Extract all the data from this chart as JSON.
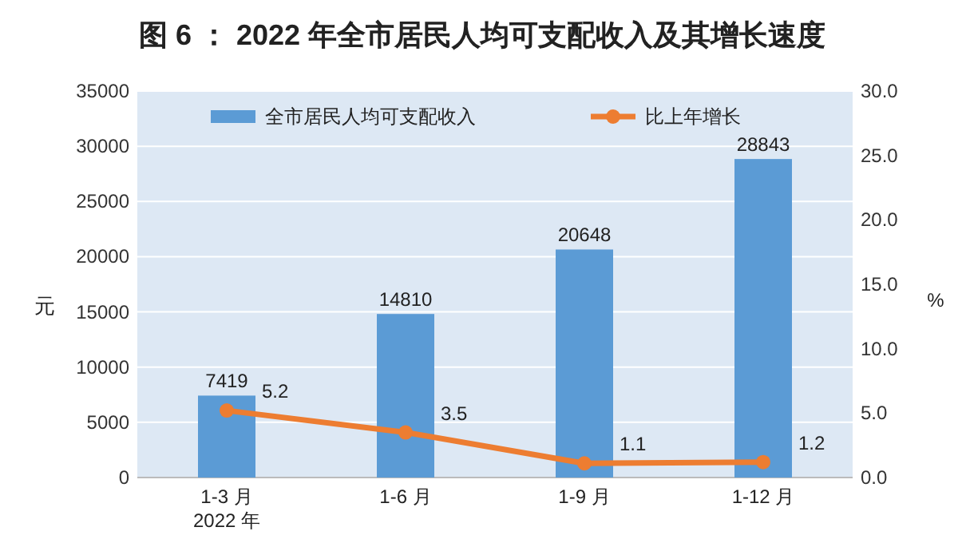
{
  "chart_data": {
    "type": "bar",
    "title": "图 6 ： 2022 年全市居民人均可支配收入及其增长速度",
    "categories": [
      "1-3 月\n2022 年",
      "1-6 月",
      "1-9 月",
      "1-12 月"
    ],
    "series": [
      {
        "name": "全市居民人均可支配收入",
        "color": "#5b9bd5",
        "values": [
          7419,
          14810,
          20648,
          28843
        ]
      },
      {
        "name": "比上年增长",
        "type": "line",
        "axis": "y2",
        "color": "#ed7d31",
        "values": [
          5.2,
          3.5,
          1.1,
          1.2
        ]
      }
    ],
    "ylabel": "元",
    "y2label": "%",
    "ylim": [
      0,
      35000
    ],
    "yticks": [
      0,
      5000,
      10000,
      15000,
      20000,
      25000,
      30000,
      35000
    ],
    "y2lim": [
      0,
      30
    ],
    "y2ticks": [
      {
        "value": 0,
        "label": "0.0"
      },
      {
        "value": 5,
        "label": "5.0"
      },
      {
        "value": 10,
        "label": "10.0"
      },
      {
        "value": 15,
        "label": "15.0"
      },
      {
        "value": 20,
        "label": "20.0"
      },
      {
        "value": 25,
        "label": "25.0"
      },
      {
        "value": 30,
        "label": "30.0"
      }
    ],
    "grid": "y",
    "legend": "top",
    "marker": "circle",
    "data_labels": true
  }
}
